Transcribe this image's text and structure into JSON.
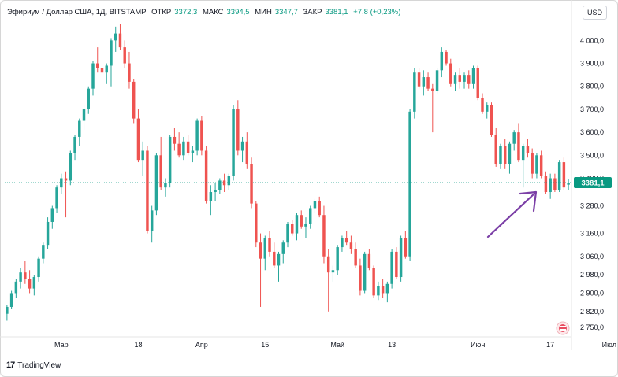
{
  "header": {
    "symbol": "Эфириум / Доллар США, 1Д, BITSTAMP",
    "open_label": "ОТКР",
    "open_value": "3372,3",
    "high_label": "МАКС",
    "high_value": "3394,5",
    "low_label": "МИН",
    "low_value": "3347,7",
    "close_label": "ЗАКР",
    "close_value": "3381,1",
    "change": "+7,8 (+0,23%)"
  },
  "currency": "USD",
  "price_label": "3381,1",
  "brand": "TradingView",
  "colors": {
    "up": "#26a69a",
    "down": "#ef5350",
    "arrow": "#7b3fa6",
    "last": "#089981"
  },
  "chart_data": {
    "type": "candlestick",
    "ylim": [
      2720,
      4080
    ],
    "y_ticks": [
      {
        "value": 4000,
        "label": "4 000,0"
      },
      {
        "value": 3900,
        "label": "3 900,0"
      },
      {
        "value": 3800,
        "label": "3 800,0"
      },
      {
        "value": 3700,
        "label": "3 700,0"
      },
      {
        "value": 3600,
        "label": "3 600,0"
      },
      {
        "value": 3500,
        "label": "3 500,0"
      },
      {
        "value": 3400,
        "label": "3 400,0"
      },
      {
        "value": 3280,
        "label": "3 280,0"
      },
      {
        "value": 3160,
        "label": "3 160,0"
      },
      {
        "value": 3060,
        "label": "3 060,0"
      },
      {
        "value": 2980,
        "label": "2 980,0"
      },
      {
        "value": 2900,
        "label": "2 900,0"
      },
      {
        "value": 2820,
        "label": "2 820,0"
      },
      {
        "value": 2750,
        "label": "2 750,0"
      }
    ],
    "x_ticks": [
      {
        "index": 12,
        "label": "Мар"
      },
      {
        "index": 29,
        "label": "18"
      },
      {
        "index": 43,
        "label": "Апр"
      },
      {
        "index": 57,
        "label": "15"
      },
      {
        "index": 73,
        "label": "Май"
      },
      {
        "index": 85,
        "label": "13"
      },
      {
        "index": 104,
        "label": "Июн"
      },
      {
        "index": 120,
        "label": "17"
      },
      {
        "index": 133,
        "label": "Июл"
      }
    ],
    "last_price": 3381.1,
    "ohlc": [
      [
        2810,
        2850,
        2780,
        2840
      ],
      [
        2840,
        2910,
        2830,
        2900
      ],
      [
        2900,
        2960,
        2880,
        2950
      ],
      [
        2950,
        3010,
        2920,
        2990
      ],
      [
        2990,
        3040,
        2940,
        2960
      ],
      [
        2960,
        3000,
        2900,
        2920
      ],
      [
        2920,
        2980,
        2890,
        2970
      ],
      [
        2970,
        3060,
        2950,
        3050
      ],
      [
        3050,
        3120,
        3030,
        3110
      ],
      [
        3110,
        3230,
        3090,
        3210
      ],
      [
        3210,
        3280,
        3180,
        3270
      ],
      [
        3270,
        3370,
        3250,
        3360
      ],
      [
        3360,
        3420,
        3330,
        3400
      ],
      [
        3400,
        3430,
        3230,
        3390
      ],
      [
        3390,
        3520,
        3370,
        3510
      ],
      [
        3510,
        3590,
        3480,
        3580
      ],
      [
        3580,
        3660,
        3540,
        3650
      ],
      [
        3650,
        3720,
        3610,
        3700
      ],
      [
        3700,
        3800,
        3680,
        3790
      ],
      [
        3790,
        3910,
        3760,
        3900
      ],
      [
        3900,
        3970,
        3860,
        3880
      ],
      [
        3880,
        3920,
        3840,
        3860
      ],
      [
        3860,
        3900,
        3810,
        3890
      ],
      [
        3890,
        4010,
        3800,
        4000
      ],
      [
        4000,
        4060,
        3950,
        4030
      ],
      [
        4030,
        4070,
        3960,
        3970
      ],
      [
        3970,
        4000,
        3880,
        3900
      ],
      [
        3900,
        3950,
        3790,
        3820
      ],
      [
        3820,
        3830,
        3640,
        3660
      ],
      [
        3660,
        3700,
        3470,
        3480
      ],
      [
        3480,
        3560,
        3410,
        3520
      ],
      [
        3520,
        3540,
        3160,
        3170
      ],
      [
        3170,
        3280,
        3120,
        3260
      ],
      [
        3260,
        3510,
        3240,
        3500
      ],
      [
        3500,
        3580,
        3350,
        3360
      ],
      [
        3360,
        3400,
        3320,
        3380
      ],
      [
        3380,
        3590,
        3360,
        3580
      ],
      [
        3580,
        3620,
        3520,
        3550
      ],
      [
        3550,
        3600,
        3490,
        3500
      ],
      [
        3500,
        3580,
        3480,
        3560
      ],
      [
        3560,
        3590,
        3500,
        3510
      ],
      [
        3510,
        3540,
        3470,
        3520
      ],
      [
        3520,
        3660,
        3500,
        3650
      ],
      [
        3650,
        3670,
        3500,
        3520
      ],
      [
        3520,
        3540,
        3290,
        3300
      ],
      [
        3300,
        3370,
        3240,
        3340
      ],
      [
        3340,
        3380,
        3300,
        3350
      ],
      [
        3350,
        3400,
        3330,
        3390
      ],
      [
        3390,
        3420,
        3340,
        3370
      ],
      [
        3370,
        3420,
        3350,
        3410
      ],
      [
        3410,
        3720,
        3390,
        3700
      ],
      [
        3700,
        3740,
        3500,
        3520
      ],
      [
        3520,
        3580,
        3470,
        3560
      ],
      [
        3560,
        3600,
        3440,
        3460
      ],
      [
        3460,
        3490,
        3270,
        3290
      ],
      [
        3290,
        3300,
        3100,
        3120
      ],
      [
        3120,
        3160,
        2840,
        3050
      ],
      [
        3050,
        3150,
        3000,
        3140
      ],
      [
        3140,
        3170,
        3060,
        3080
      ],
      [
        3080,
        3120,
        3010,
        3020
      ],
      [
        3020,
        3080,
        2950,
        3070
      ],
      [
        3070,
        3130,
        3030,
        3120
      ],
      [
        3120,
        3210,
        3100,
        3200
      ],
      [
        3200,
        3220,
        3150,
        3160
      ],
      [
        3160,
        3250,
        3130,
        3240
      ],
      [
        3240,
        3260,
        3180,
        3190
      ],
      [
        3190,
        3230,
        3140,
        3200
      ],
      [
        3200,
        3280,
        3180,
        3270
      ],
      [
        3270,
        3310,
        3250,
        3300
      ],
      [
        3300,
        3320,
        3230,
        3240
      ],
      [
        3240,
        3280,
        3030,
        3060
      ],
      [
        3060,
        3090,
        2820,
        2990
      ],
      [
        2990,
        3020,
        2950,
        3000
      ],
      [
        3000,
        3110,
        2980,
        3100
      ],
      [
        3100,
        3150,
        3080,
        3140
      ],
      [
        3140,
        3170,
        3110,
        3120
      ],
      [
        3120,
        3150,
        3070,
        3090
      ],
      [
        3090,
        3120,
        3010,
        3020
      ],
      [
        3020,
        3050,
        2890,
        2910
      ],
      [
        2910,
        3080,
        2900,
        3070
      ],
      [
        3070,
        3090,
        3000,
        3010
      ],
      [
        3010,
        3020,
        2880,
        2890
      ],
      [
        2890,
        2950,
        2870,
        2930
      ],
      [
        2930,
        2960,
        2880,
        2900
      ],
      [
        2900,
        2950,
        2860,
        2940
      ],
      [
        2940,
        3090,
        2920,
        3080
      ],
      [
        3080,
        3100,
        2960,
        2970
      ],
      [
        2970,
        3150,
        2950,
        3140
      ],
      [
        3140,
        3170,
        3050,
        3060
      ],
      [
        3060,
        3700,
        3040,
        3690
      ],
      [
        3690,
        3880,
        3660,
        3860
      ],
      [
        3860,
        3880,
        3790,
        3800
      ],
      [
        3800,
        3870,
        3760,
        3840
      ],
      [
        3840,
        3860,
        3780,
        3790
      ],
      [
        3790,
        3810,
        3600,
        3780
      ],
      [
        3780,
        3880,
        3770,
        3870
      ],
      [
        3870,
        3970,
        3840,
        3950
      ],
      [
        3950,
        3960,
        3890,
        3900
      ],
      [
        3900,
        3920,
        3800,
        3810
      ],
      [
        3810,
        3860,
        3780,
        3850
      ],
      [
        3850,
        3880,
        3790,
        3820
      ],
      [
        3820,
        3860,
        3790,
        3850
      ],
      [
        3850,
        3870,
        3790,
        3810
      ],
      [
        3810,
        3890,
        3790,
        3880
      ],
      [
        3880,
        3890,
        3740,
        3750
      ],
      [
        3750,
        3770,
        3680,
        3690
      ],
      [
        3690,
        3730,
        3660,
        3720
      ],
      [
        3720,
        3730,
        3580,
        3590
      ],
      [
        3590,
        3620,
        3450,
        3460
      ],
      [
        3460,
        3550,
        3440,
        3540
      ],
      [
        3540,
        3570,
        3440,
        3460
      ],
      [
        3460,
        3560,
        3420,
        3550
      ],
      [
        3550,
        3610,
        3520,
        3600
      ],
      [
        3600,
        3640,
        3470,
        3480
      ],
      [
        3480,
        3550,
        3360,
        3540
      ],
      [
        3540,
        3570,
        3490,
        3510
      ],
      [
        3510,
        3530,
        3400,
        3420
      ],
      [
        3420,
        3510,
        3400,
        3500
      ],
      [
        3500,
        3520,
        3400,
        3410
      ],
      [
        3410,
        3430,
        3330,
        3340
      ],
      [
        3340,
        3420,
        3310,
        3400
      ],
      [
        3400,
        3420,
        3340,
        3350
      ],
      [
        3350,
        3480,
        3340,
        3470
      ],
      [
        3470,
        3490,
        3350,
        3360
      ],
      [
        3372,
        3395,
        3348,
        3381
      ]
    ]
  }
}
